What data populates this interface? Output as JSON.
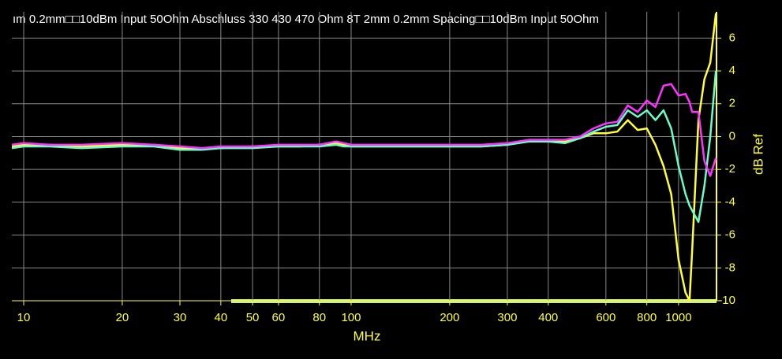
{
  "chart_data": {
    "type": "line",
    "title": "ım 0.2mm□□10dBm Input 50Ohm Abschluss 330 430 470 Ohm 8T 2mm 0.2mm Spacing□□10dBm Input 50Ohm",
    "x_label": "MHz",
    "y_label": "dB Ref",
    "x": [
      9.2,
      10,
      12,
      15,
      20,
      25,
      30,
      35,
      40,
      50,
      60,
      70,
      80,
      90,
      95,
      100,
      120,
      150,
      200,
      250,
      300,
      350,
      400,
      450,
      500,
      550,
      600,
      650,
      700,
      750,
      800,
      850,
      900,
      950,
      1000,
      1050,
      1080,
      1100,
      1150,
      1200,
      1250,
      1300
    ],
    "series": [
      {
        "name": "yellow",
        "color": "#ffff33",
        "values": [
          -0.6,
          -0.5,
          -0.5,
          -0.6,
          -0.5,
          -0.5,
          -0.7,
          -0.7,
          -0.7,
          -0.6,
          -0.6,
          -0.6,
          -0.5,
          -0.4,
          -0.5,
          -0.6,
          -0.6,
          -0.6,
          -0.6,
          -0.6,
          -0.5,
          -0.3,
          -0.3,
          -0.3,
          -0.1,
          0.2,
          0.2,
          0.3,
          1.0,
          0.4,
          0.5,
          -0.5,
          -1.8,
          -3.5,
          -7.5,
          -9.5,
          -10,
          -7,
          1,
          3.5,
          4.5,
          7.5
        ]
      },
      {
        "name": "cyan",
        "color": "#66ffcc",
        "values": [
          -0.7,
          -0.6,
          -0.6,
          -0.7,
          -0.6,
          -0.6,
          -0.8,
          -0.8,
          -0.7,
          -0.7,
          -0.6,
          -0.6,
          -0.6,
          -0.5,
          -0.6,
          -0.6,
          -0.6,
          -0.6,
          -0.6,
          -0.6,
          -0.5,
          -0.3,
          -0.3,
          -0.4,
          -0.1,
          0.3,
          0.6,
          0.7,
          1.6,
          1.2,
          1.6,
          1.0,
          1.6,
          0.5,
          -1.8,
          -3.5,
          -4.2,
          -4.5,
          -5.2,
          -3,
          0,
          4
        ]
      },
      {
        "name": "magenta",
        "color": "#ff33ff",
        "values": [
          -0.5,
          -0.4,
          -0.5,
          -0.5,
          -0.4,
          -0.5,
          -0.6,
          -0.7,
          -0.6,
          -0.6,
          -0.5,
          -0.5,
          -0.5,
          -0.3,
          -0.4,
          -0.5,
          -0.5,
          -0.5,
          -0.5,
          -0.5,
          -0.4,
          -0.2,
          -0.2,
          -0.2,
          0,
          0.5,
          0.8,
          0.9,
          1.9,
          1.5,
          2.2,
          1.8,
          3.1,
          3.2,
          2.5,
          2.6,
          2.1,
          1.5,
          1.5,
          -1.5,
          -2.4,
          -1.3
        ]
      }
    ],
    "xlim": [
      9.2,
      1306
    ],
    "xscale": "log",
    "xticks": [
      10,
      20,
      30,
      40,
      50,
      60,
      80,
      100,
      200,
      300,
      400,
      600,
      800,
      1000
    ],
    "ylim": [
      -10,
      7.6
    ],
    "yticks": [
      -10,
      -8,
      -6,
      -4,
      -2,
      0,
      2,
      4,
      6
    ],
    "grid": true
  }
}
